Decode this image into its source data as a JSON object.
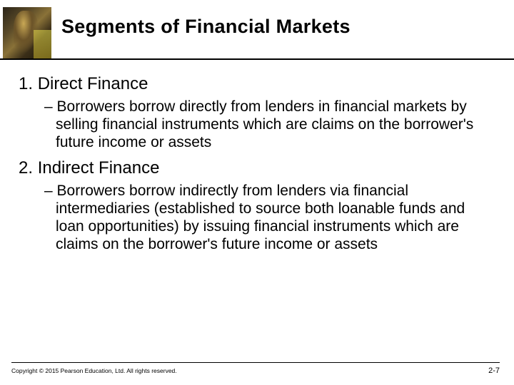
{
  "colors": {
    "background": "#ffffff",
    "text": "#000000",
    "rule": "#000000"
  },
  "typography": {
    "title_fontsize": 27,
    "title_weight": 700,
    "heading_fontsize": 24,
    "body_fontsize": 21,
    "footer_fontsize": 8.5,
    "pagenum_fontsize": 11,
    "font_family": "Verdana"
  },
  "title": "Segments of Financial Markets",
  "items": [
    {
      "number": "1.",
      "heading": "Direct Finance",
      "bullet": "Borrowers borrow directly from lenders in financial markets by selling financial instruments which are claims on the borrower's future income or assets"
    },
    {
      "number": "2.",
      "heading": "Indirect Finance",
      "bullet": "Borrowers borrow indirectly from lenders via financial intermediaries (established to source both loanable funds and loan opportunities) by issuing financial instruments which are claims on the borrower's future income or assets"
    }
  ],
  "footer": {
    "copyright": "Copyright © 2015 Pearson Education, Ltd. All rights reserved.",
    "page": "2-7"
  }
}
